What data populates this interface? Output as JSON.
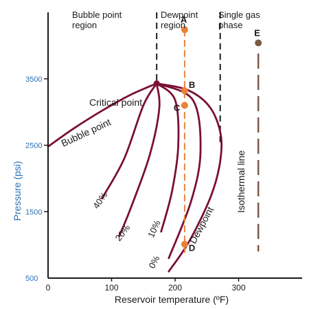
{
  "chart_data": {
    "type": "line",
    "title": "",
    "xlabel": "Reservoir temperature (ºF)",
    "ylabel": "Pressure (psi)",
    "xlim": [
      0,
      400
    ],
    "ylim": [
      500,
      4500
    ],
    "x_ticks": [
      0,
      100,
      200,
      300
    ],
    "y_ticks": [
      500,
      1500,
      2500,
      3500
    ],
    "colors": {
      "phase_envelope": "#7a0f35",
      "path_line": "#e8813a",
      "isothermal": "#7b5a45",
      "y_axis_text": "#2a6fb4"
    },
    "regions": [
      {
        "label_lines": [
          "Bubble point",
          "region"
        ]
      },
      {
        "label_lines": [
          "Dewpoint",
          "region"
        ]
      },
      {
        "label_lines": [
          "Single gas",
          "phase"
        ]
      }
    ],
    "region_boundaries_x": [
      171,
      271
    ],
    "critical_point": {
      "label": "Critical point",
      "x": 171,
      "y": 3430
    },
    "bubble_point_curve": {
      "label": "Bubble point",
      "x": [
        0,
        40,
        85,
        130,
        171
      ],
      "y": [
        2480,
        2750,
        3020,
        3260,
        3430
      ]
    },
    "dewpoint_curve": {
      "label": "Dewpoint",
      "x": [
        171,
        220,
        255,
        272,
        270,
        255,
        222,
        190
      ],
      "y": [
        3430,
        3330,
        3070,
        2650,
        2200,
        1700,
        1050,
        600
      ]
    },
    "quality_lines": [
      {
        "label": "40%",
        "x": [
          171,
          150,
          120,
          85
        ],
        "y": [
          3430,
          3100,
          2300,
          1700
        ]
      },
      {
        "label": "20%",
        "x": [
          171,
          175,
          160,
          130,
          112
        ],
        "y": [
          3430,
          3050,
          2350,
          1550,
          1130
        ]
      },
      {
        "label": "10%",
        "x": [
          171,
          200,
          205,
          195,
          178
        ],
        "y": [
          3430,
          3180,
          2500,
          1800,
          1200
        ]
      },
      {
        "label": "0%",
        "x": [
          171,
          228,
          240,
          225,
          190
        ],
        "y": [
          3430,
          3180,
          2400,
          1650,
          800
        ]
      }
    ],
    "path": {
      "x": 215,
      "y_range": [
        880,
        4240
      ],
      "points": [
        {
          "label": "A",
          "x": 215,
          "y": 4240
        },
        {
          "label": "B",
          "x": 215,
          "y": 3320
        },
        {
          "label": "C",
          "x": 215,
          "y": 3100
        },
        {
          "label": "D",
          "x": 215,
          "y": 1010
        }
      ]
    },
    "isothermal_line": {
      "label": "Isothermal line",
      "x": 331,
      "y_range": [
        900,
        3880
      ],
      "point": {
        "label": "E",
        "x": 331,
        "y": 4040
      }
    }
  }
}
